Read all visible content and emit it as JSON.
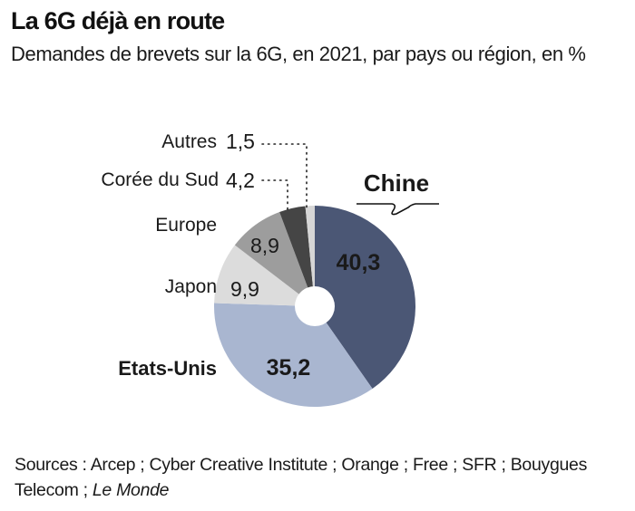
{
  "header": {
    "title": "La 6G déjà en route",
    "subtitle": "Demandes de brevets sur la 6G, en 2021, par pays ou région, en %"
  },
  "footer": {
    "sources_prefix": "Sources : Arcep ; Cyber Creative Institute ; Orange ; Free ; SFR ; Bouygues Telecom ; ",
    "sources_publication": "Le Monde"
  },
  "chart_data": {
    "type": "pie",
    "variant": "donut",
    "title": "La 6G déjà en route",
    "subtitle": "Demandes de brevets sur la 6G, en 2021, par pays ou région, en %",
    "unit": "%",
    "start": "top",
    "direction": "clockwise",
    "slices": [
      {
        "label": "Chine",
        "value": 40.3,
        "value_label": "40,3",
        "color": "#4b5775",
        "label_bold": true
      },
      {
        "label": "Etats-Unis",
        "value": 35.2,
        "value_label": "35,2",
        "color": "#a9b6d0",
        "label_bold": true
      },
      {
        "label": "Japon",
        "value": 9.9,
        "value_label": "9,9",
        "color": "#dcdcdc",
        "label_bold": false
      },
      {
        "label": "Europe",
        "value": 8.9,
        "value_label": "8,9",
        "color": "#9d9d9d",
        "label_bold": false
      },
      {
        "label": "Corée du Sud",
        "value": 4.2,
        "value_label": "4,2",
        "color": "#454545",
        "label_bold": false
      },
      {
        "label": "Autres",
        "value": 1.5,
        "value_label": "1,5",
        "color": "#d6d6d6",
        "label_bold": false
      }
    ]
  }
}
